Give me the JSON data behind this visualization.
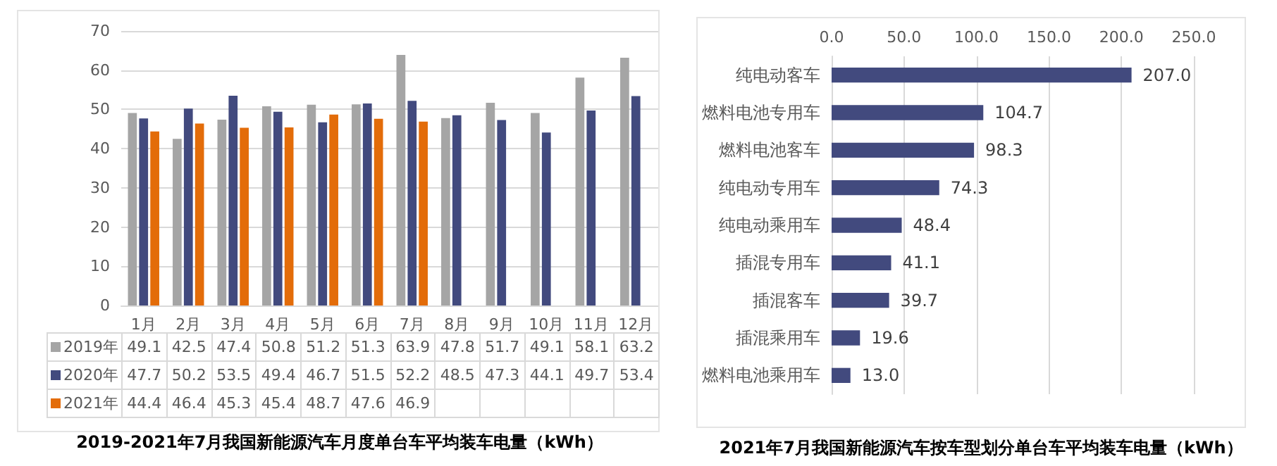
{
  "chart_data": [
    {
      "type": "bar",
      "title": "2019-2021年7月我国新能源汽车月度单台车平均装车电量（kWh）",
      "categories": [
        "1月",
        "2月",
        "3月",
        "4月",
        "5月",
        "6月",
        "7月",
        "8月",
        "9月",
        "10月",
        "11月",
        "12月"
      ],
      "series": [
        {
          "name": "2019年",
          "color": "#a5a5a5",
          "values": [
            49.1,
            42.5,
            47.4,
            50.8,
            51.2,
            51.3,
            63.9,
            47.8,
            51.7,
            49.1,
            58.1,
            63.2
          ]
        },
        {
          "name": "2020年",
          "color": "#424a7e",
          "values": [
            47.7,
            50.2,
            53.5,
            49.4,
            46.7,
            51.5,
            52.2,
            48.5,
            47.3,
            44.1,
            49.7,
            53.4
          ]
        },
        {
          "name": "2021年",
          "color": "#e36c09",
          "values": [
            44.4,
            46.4,
            45.3,
            45.4,
            48.7,
            47.6,
            46.9,
            null,
            null,
            null,
            null,
            null
          ]
        }
      ],
      "ylim": [
        0,
        70
      ],
      "yticks": [
        0,
        10,
        20,
        30,
        40,
        50,
        60,
        70
      ],
      "grid": "y",
      "legend": "bottom",
      "data_labels": true
    },
    {
      "type": "bar",
      "orientation": "horizontal",
      "title": "2021年7月我国新能源汽车按车型划分单台车平均装车电量（kWh）",
      "categories": [
        "纯电动客车",
        "燃料电池专用车",
        "燃料电池客车",
        "纯电动专用车",
        "纯电动乘用车",
        "插混专用车",
        "插混客车",
        "插混乘用车",
        "燃料电池乘用车"
      ],
      "values": [
        207.0,
        104.7,
        98.3,
        74.3,
        48.4,
        41.1,
        39.7,
        19.6,
        13.0
      ],
      "color": "#424a7e",
      "value_labels": [
        "207.0",
        "104.7",
        "98.3",
        "74.3",
        "48.4",
        "41.1",
        "39.7",
        "19.6",
        "13.0"
      ],
      "xlim": [
        0,
        250
      ],
      "xticks": [
        {
          "value": 0,
          "label": "0.0"
        },
        {
          "value": 50,
          "label": "50.0"
        },
        {
          "value": 100,
          "label": "100.0"
        },
        {
          "value": 150,
          "label": "150.0"
        },
        {
          "value": 200,
          "label": "200.0"
        },
        {
          "value": 250,
          "label": "250.0"
        }
      ],
      "grid": "x"
    }
  ]
}
